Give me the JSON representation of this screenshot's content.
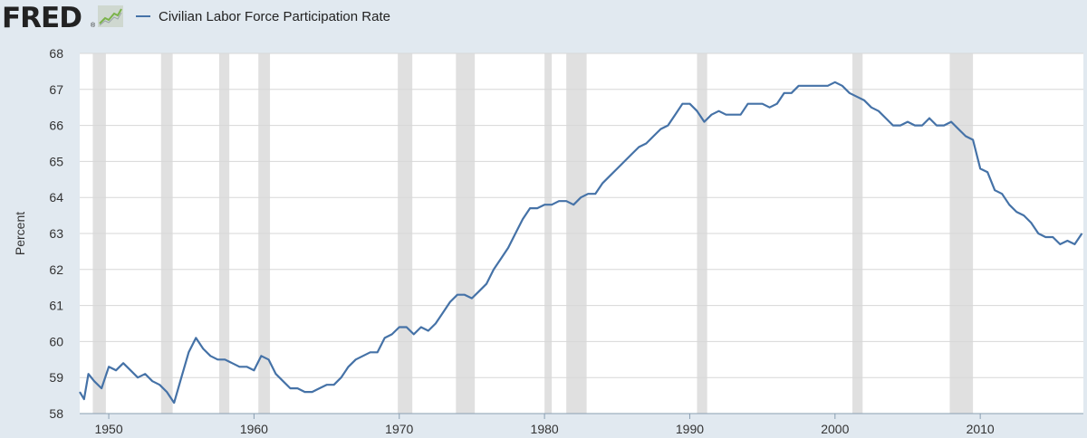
{
  "header": {
    "logo_text": "FRED",
    "reg_mark": "®",
    "legend_label": "Civilian Labor Force Participation Rate",
    "logo_icon": "trend-line-icon"
  },
  "colors": {
    "background": "#e1e9f0",
    "plot_background": "#ffffff",
    "line": "#4572a7",
    "recession": "#e0e0e0",
    "grid": "#d7d7d7"
  },
  "chart_data": {
    "type": "line",
    "title": "",
    "xlabel": "",
    "ylabel": "Percent",
    "xlim": [
      1948.0,
      2017.1
    ],
    "ylim": [
      58,
      68
    ],
    "x_ticks": [
      1950,
      1960,
      1970,
      1980,
      1990,
      2000,
      2010
    ],
    "y_ticks": [
      58,
      59,
      60,
      61,
      62,
      63,
      64,
      65,
      66,
      67,
      68
    ],
    "grid": "horizontal",
    "legend_position": "top-left",
    "recessions": [
      [
        1948.9,
        1949.8
      ],
      [
        1953.6,
        1954.4
      ],
      [
        1957.6,
        1958.3
      ],
      [
        1960.3,
        1961.1
      ],
      [
        1969.9,
        1970.9
      ],
      [
        1973.9,
        1975.2
      ],
      [
        1980.0,
        1980.5
      ],
      [
        1981.5,
        1982.9
      ],
      [
        1990.5,
        1991.2
      ],
      [
        2001.2,
        2001.9
      ],
      [
        2007.9,
        2009.5
      ]
    ],
    "series": [
      {
        "name": "Civilian Labor Force Participation Rate",
        "x": [
          1948.0,
          1948.3,
          1948.6,
          1949.0,
          1949.5,
          1950.0,
          1950.5,
          1951.0,
          1951.5,
          1952.0,
          1952.5,
          1953.0,
          1953.5,
          1954.0,
          1954.5,
          1955.0,
          1955.5,
          1956.0,
          1956.5,
          1957.0,
          1957.5,
          1958.0,
          1958.5,
          1959.0,
          1959.5,
          1960.0,
          1960.5,
          1961.0,
          1961.5,
          1962.0,
          1962.5,
          1963.0,
          1963.5,
          1964.0,
          1964.5,
          1965.0,
          1965.5,
          1966.0,
          1966.5,
          1967.0,
          1967.5,
          1968.0,
          1968.5,
          1969.0,
          1969.5,
          1970.0,
          1970.5,
          1971.0,
          1971.5,
          1972.0,
          1972.5,
          1973.0,
          1973.5,
          1974.0,
          1974.5,
          1975.0,
          1975.5,
          1976.0,
          1976.5,
          1977.0,
          1977.5,
          1978.0,
          1978.5,
          1979.0,
          1979.5,
          1980.0,
          1980.5,
          1981.0,
          1981.5,
          1982.0,
          1982.5,
          1983.0,
          1983.5,
          1984.0,
          1984.5,
          1985.0,
          1985.5,
          1986.0,
          1986.5,
          1987.0,
          1987.5,
          1988.0,
          1988.5,
          1989.0,
          1989.5,
          1990.0,
          1990.5,
          1991.0,
          1991.5,
          1992.0,
          1992.5,
          1993.0,
          1993.5,
          1994.0,
          1994.5,
          1995.0,
          1995.5,
          1996.0,
          1996.5,
          1997.0,
          1997.5,
          1998.0,
          1998.5,
          1999.0,
          1999.5,
          2000.0,
          2000.5,
          2001.0,
          2001.5,
          2002.0,
          2002.5,
          2003.0,
          2003.5,
          2004.0,
          2004.5,
          2005.0,
          2005.5,
          2006.0,
          2006.5,
          2007.0,
          2007.5,
          2008.0,
          2008.5,
          2009.0,
          2009.5,
          2010.0,
          2010.5,
          2011.0,
          2011.5,
          2012.0,
          2012.5,
          2013.0,
          2013.5,
          2014.0,
          2014.5,
          2015.0,
          2015.5,
          2016.0,
          2016.5,
          2017.0
        ],
        "values": [
          58.6,
          58.4,
          59.1,
          58.9,
          58.7,
          59.3,
          59.2,
          59.4,
          59.2,
          59.0,
          59.1,
          58.9,
          58.8,
          58.6,
          58.3,
          59.0,
          59.7,
          60.1,
          59.8,
          59.6,
          59.5,
          59.5,
          59.4,
          59.3,
          59.3,
          59.2,
          59.6,
          59.5,
          59.1,
          58.9,
          58.7,
          58.7,
          58.6,
          58.6,
          58.7,
          58.8,
          58.8,
          59.0,
          59.3,
          59.5,
          59.6,
          59.7,
          59.7,
          60.1,
          60.2,
          60.4,
          60.4,
          60.2,
          60.4,
          60.3,
          60.5,
          60.8,
          61.1,
          61.3,
          61.3,
          61.2,
          61.4,
          61.6,
          62.0,
          62.3,
          62.6,
          63.0,
          63.4,
          63.7,
          63.7,
          63.8,
          63.8,
          63.9,
          63.9,
          63.8,
          64.0,
          64.1,
          64.1,
          64.4,
          64.6,
          64.8,
          65.0,
          65.2,
          65.4,
          65.5,
          65.7,
          65.9,
          66.0,
          66.3,
          66.6,
          66.6,
          66.4,
          66.1,
          66.3,
          66.4,
          66.3,
          66.3,
          66.3,
          66.6,
          66.6,
          66.6,
          66.5,
          66.6,
          66.9,
          66.9,
          67.1,
          67.1,
          67.1,
          67.1,
          67.1,
          67.2,
          67.1,
          66.9,
          66.8,
          66.7,
          66.5,
          66.4,
          66.2,
          66.0,
          66.0,
          66.1,
          66.0,
          66.0,
          66.2,
          66.0,
          66.0,
          66.1,
          65.9,
          65.7,
          65.6,
          64.8,
          64.7,
          64.2,
          64.1,
          63.8,
          63.6,
          63.5,
          63.3,
          63.0,
          62.9,
          62.9,
          62.7,
          62.8,
          62.7,
          63.0
        ]
      }
    ]
  }
}
